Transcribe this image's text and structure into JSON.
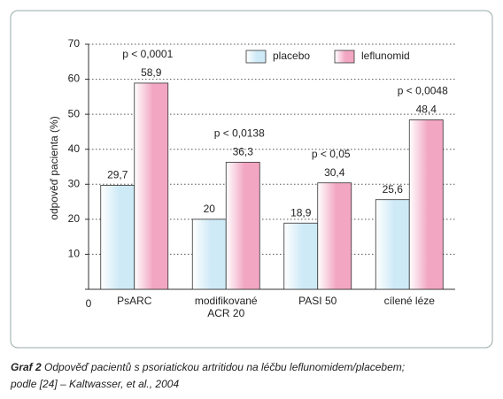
{
  "chart_data": {
    "type": "bar",
    "y_axis_label": "odpověď pacienta (%)",
    "categories": [
      "PsARC",
      "modifikované\nACR 20",
      "PASI 50",
      "cílené léze"
    ],
    "annotations": [
      "p < 0,0001",
      "p < 0,0138",
      "p < 0,05",
      "p < 0,0048"
    ],
    "series": [
      {
        "name": "placebo",
        "color": "#cfeaf7",
        "values": [
          29.7,
          20,
          18.9,
          25.6
        ],
        "value_labels": [
          "29,7",
          "20",
          "18,9",
          "25,6"
        ]
      },
      {
        "name": "leflunomid",
        "color": "#f2a6c2",
        "values": [
          58.9,
          36.3,
          30.4,
          48.4
        ],
        "value_labels": [
          "58,9",
          "36,3",
          "30,4",
          "48,4"
        ]
      }
    ],
    "ylim": [
      0,
      70
    ],
    "yticks": [
      0,
      10,
      20,
      30,
      40,
      50,
      60,
      70
    ],
    "grid": true,
    "legend": "top-right"
  },
  "caption": {
    "label": "Graf 2",
    "lines": [
      "Odpověď pacientů s psoriatickou artritidou na léčbu leflunomidem/placebem;",
      "podle [24] – Kaltwasser, et al., 2004"
    ]
  }
}
